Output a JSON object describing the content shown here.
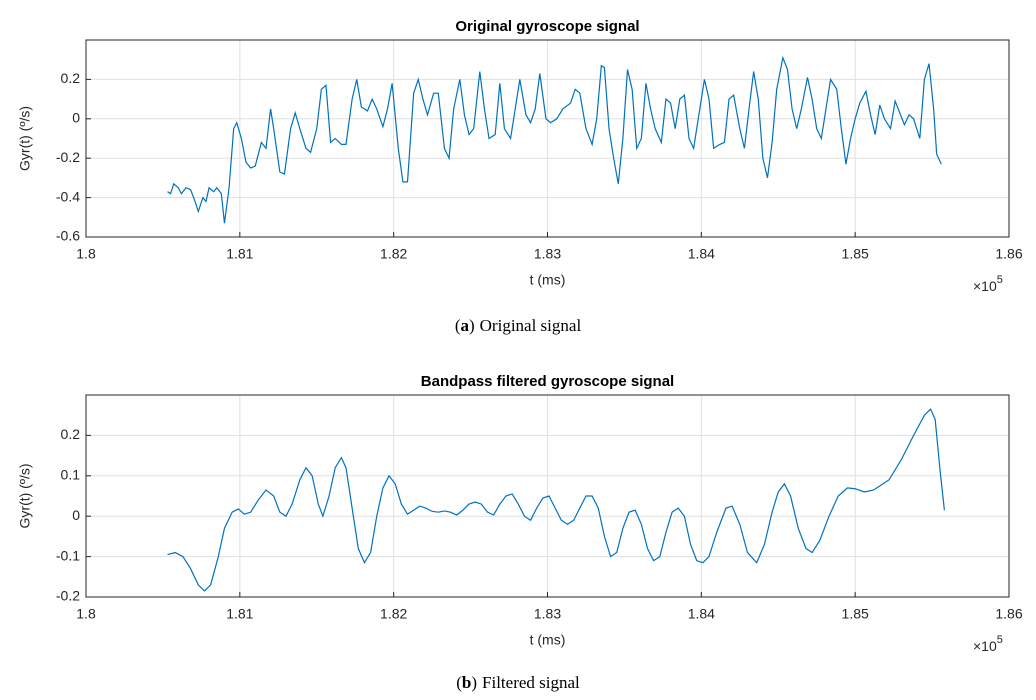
{
  "chart_data": [
    {
      "type": "line",
      "title": "Original gyroscope signal",
      "xlabel": "t (ms)",
      "ylabel": "Gyr(t) (º/s)",
      "x_multiplier": "×10",
      "x_multiplier_exponent": "5",
      "caption_open": "(",
      "caption_label": "a",
      "caption_close": ")",
      "caption": "Original signal",
      "color": "#0072bd",
      "grid": true,
      "xlim": [
        1.8,
        1.86
      ],
      "xticks": [
        1.8,
        1.81,
        1.82,
        1.83,
        1.84,
        1.85,
        1.86
      ],
      "ylim": [
        -0.6,
        0.4
      ],
      "yticks": [
        -0.6,
        -0.4,
        -0.2,
        0,
        0.2
      ],
      "x": [
        1.8053,
        1.8055,
        1.8057,
        1.806,
        1.8062,
        1.8065,
        1.8068,
        1.807,
        1.8073,
        1.8076,
        1.8078,
        1.808,
        1.8083,
        1.8085,
        1.8088,
        1.809,
        1.8093,
        1.8096,
        1.8098,
        1.8101,
        1.8104,
        1.8107,
        1.811,
        1.8114,
        1.8117,
        1.812,
        1.8122,
        1.8126,
        1.8129,
        1.8133,
        1.8136,
        1.8139,
        1.8143,
        1.8146,
        1.815,
        1.8153,
        1.8156,
        1.8159,
        1.8162,
        1.8166,
        1.8169,
        1.8173,
        1.8176,
        1.8179,
        1.8183,
        1.8186,
        1.8189,
        1.8193,
        1.8196,
        1.8199,
        1.8203,
        1.8206,
        1.8209,
        1.8213,
        1.8216,
        1.8219,
        1.8222,
        1.8226,
        1.8229,
        1.8233,
        1.8236,
        1.8239,
        1.8243,
        1.8246,
        1.8249,
        1.8252,
        1.8256,
        1.8259,
        1.8262,
        1.8266,
        1.8269,
        1.8272,
        1.8276,
        1.8279,
        1.8282,
        1.8286,
        1.8289,
        1.8292,
        1.8295,
        1.8299,
        1.8302,
        1.8306,
        1.831,
        1.8315,
        1.8318,
        1.8321,
        1.8325,
        1.8329,
        1.8332,
        1.8335,
        1.8337,
        1.834,
        1.8343,
        1.8346,
        1.8349,
        1.8352,
        1.8355,
        1.8358,
        1.8361,
        1.8364,
        1.8367,
        1.837,
        1.8374,
        1.8377,
        1.838,
        1.8383,
        1.8386,
        1.8389,
        1.8392,
        1.8395,
        1.8399,
        1.8402,
        1.8405,
        1.8408,
        1.8412,
        1.8415,
        1.8418,
        1.8421,
        1.8425,
        1.8428,
        1.8431,
        1.8434,
        1.8437,
        1.844,
        1.8443,
        1.8446,
        1.8449,
        1.8453,
        1.8456,
        1.8459,
        1.8462,
        1.8465,
        1.8469,
        1.8472,
        1.8475,
        1.8478,
        1.8481,
        1.8484,
        1.8488,
        1.8491,
        1.8494,
        1.8497,
        1.85,
        1.8503,
        1.8507,
        1.851,
        1.8513,
        1.8516,
        1.8519,
        1.8523,
        1.8526,
        1.8529,
        1.8532,
        1.8535,
        1.8538,
        1.8542,
        1.8545,
        1.8548,
        1.8551,
        1.8553,
        1.8556
      ],
      "values": [
        -0.37,
        -0.38,
        -0.33,
        -0.35,
        -0.38,
        -0.35,
        -0.36,
        -0.4,
        -0.47,
        -0.4,
        -0.42,
        -0.35,
        -0.37,
        -0.35,
        -0.38,
        -0.53,
        -0.35,
        -0.05,
        -0.02,
        -0.1,
        -0.22,
        -0.25,
        -0.24,
        -0.12,
        -0.15,
        0.05,
        -0.05,
        -0.27,
        -0.28,
        -0.05,
        0.03,
        -0.05,
        -0.15,
        -0.17,
        -0.05,
        0.15,
        0.17,
        -0.12,
        -0.1,
        -0.13,
        -0.13,
        0.1,
        0.2,
        0.06,
        0.04,
        0.1,
        0.05,
        -0.04,
        0.05,
        0.18,
        -0.15,
        -0.32,
        -0.32,
        0.13,
        0.2,
        0.1,
        0.02,
        0.13,
        0.13,
        -0.15,
        -0.2,
        0.05,
        0.2,
        0.02,
        -0.08,
        -0.05,
        0.24,
        0.05,
        -0.1,
        -0.08,
        0.18,
        -0.05,
        -0.1,
        0.05,
        0.2,
        0.02,
        -0.02,
        0.05,
        0.23,
        0,
        -0.02,
        0,
        0.05,
        0.08,
        0.15,
        0.13,
        -0.05,
        -0.13,
        0,
        0.27,
        0.26,
        -0.05,
        -0.2,
        -0.33,
        -0.1,
        0.25,
        0.15,
        -0.15,
        -0.1,
        0.18,
        0.05,
        -0.05,
        -0.12,
        0.1,
        0.08,
        -0.05,
        0.1,
        0.12,
        -0.1,
        -0.15,
        0.05,
        0.2,
        0.1,
        -0.15,
        -0.13,
        -0.12,
        0.1,
        0.12,
        -0.05,
        -0.15,
        0.05,
        0.24,
        0.1,
        -0.2,
        -0.3,
        -0.12,
        0.15,
        0.31,
        0.25,
        0.05,
        -0.05,
        0.05,
        0.21,
        0.1,
        -0.05,
        -0.1,
        0.05,
        0.2,
        0.15,
        -0.05,
        -0.23,
        -0.1,
        0,
        0.08,
        0.14,
        0.02,
        -0.08,
        0.07,
        0,
        -0.05,
        0.09,
        0.03,
        -0.03,
        0.02,
        0,
        -0.1,
        0.2,
        0.28,
        0.05,
        -0.18,
        -0.23
      ]
    },
    {
      "type": "line",
      "title": "Bandpass filtered gyroscope signal",
      "xlabel": "t (ms)",
      "ylabel": "Gyr(t) (º/s)",
      "x_multiplier": "×10",
      "x_multiplier_exponent": "5",
      "caption_open": "(",
      "caption_label": "b",
      "caption_close": ")",
      "caption": "Filtered signal",
      "color": "#0072bd",
      "grid": true,
      "xlim": [
        1.8,
        1.86
      ],
      "xticks": [
        1.8,
        1.81,
        1.82,
        1.83,
        1.84,
        1.85,
        1.86
      ],
      "ylim": [
        -0.2,
        0.3
      ],
      "yticks": [
        -0.2,
        -0.1,
        0,
        0.1,
        0.2
      ],
      "x": [
        1.8053,
        1.8058,
        1.8063,
        1.8068,
        1.8073,
        1.8077,
        1.8081,
        1.8086,
        1.809,
        1.8095,
        1.8099,
        1.8103,
        1.8107,
        1.8112,
        1.8117,
        1.8122,
        1.8126,
        1.813,
        1.8134,
        1.8139,
        1.8143,
        1.8147,
        1.8151,
        1.8154,
        1.8158,
        1.8162,
        1.8166,
        1.8169,
        1.8173,
        1.8177,
        1.8181,
        1.8185,
        1.8189,
        1.8193,
        1.8197,
        1.8201,
        1.8205,
        1.8209,
        1.8213,
        1.8217,
        1.8221,
        1.8225,
        1.8229,
        1.8233,
        1.8237,
        1.8241,
        1.8245,
        1.8249,
        1.8253,
        1.8257,
        1.8261,
        1.8265,
        1.8269,
        1.8273,
        1.8277,
        1.8281,
        1.8285,
        1.8289,
        1.8293,
        1.8297,
        1.8301,
        1.8305,
        1.8309,
        1.8313,
        1.8317,
        1.8321,
        1.8325,
        1.8329,
        1.8333,
        1.8337,
        1.8341,
        1.8345,
        1.8349,
        1.8353,
        1.8357,
        1.8361,
        1.8365,
        1.8369,
        1.8373,
        1.8377,
        1.8381,
        1.8385,
        1.8389,
        1.8393,
        1.8397,
        1.8401,
        1.8405,
        1.841,
        1.8416,
        1.842,
        1.8425,
        1.843,
        1.8436,
        1.8441,
        1.8446,
        1.845,
        1.8454,
        1.8458,
        1.8463,
        1.8468,
        1.8472,
        1.8477,
        1.8483,
        1.8489,
        1.8495,
        1.85,
        1.8506,
        1.8512,
        1.8522,
        1.853,
        1.8538,
        1.8545,
        1.8549,
        1.8552,
        1.8555,
        1.8558
      ],
      "values": [
        -0.095,
        -0.09,
        -0.1,
        -0.13,
        -0.17,
        -0.185,
        -0.17,
        -0.1,
        -0.03,
        0.01,
        0.018,
        0.005,
        0.01,
        0.04,
        0.065,
        0.05,
        0.01,
        0,
        0.03,
        0.09,
        0.12,
        0.1,
        0.03,
        0,
        0.05,
        0.12,
        0.145,
        0.12,
        0.02,
        -0.08,
        -0.115,
        -0.09,
        0,
        0.07,
        0.1,
        0.08,
        0.03,
        0.005,
        0.015,
        0.025,
        0.02,
        0.012,
        0.01,
        0.013,
        0.01,
        0.003,
        0.015,
        0.03,
        0.035,
        0.03,
        0.01,
        0.003,
        0.03,
        0.05,
        0.055,
        0.03,
        0,
        -0.01,
        0.02,
        0.045,
        0.05,
        0.02,
        -0.01,
        -0.02,
        -0.01,
        0.02,
        0.05,
        0.05,
        0.02,
        -0.05,
        -0.1,
        -0.09,
        -0.03,
        0.01,
        0.015,
        -0.02,
        -0.08,
        -0.11,
        -0.1,
        -0.04,
        0.01,
        0.02,
        0,
        -0.07,
        -0.11,
        -0.115,
        -0.1,
        -0.04,
        0.02,
        0.025,
        -0.02,
        -0.09,
        -0.115,
        -0.07,
        0.01,
        0.06,
        0.08,
        0.05,
        -0.03,
        -0.08,
        -0.09,
        -0.06,
        0,
        0.05,
        0.07,
        0.068,
        0.06,
        0.065,
        0.09,
        0.14,
        0.2,
        0.25,
        0.265,
        0.24,
        0.12,
        0.015
      ]
    }
  ]
}
